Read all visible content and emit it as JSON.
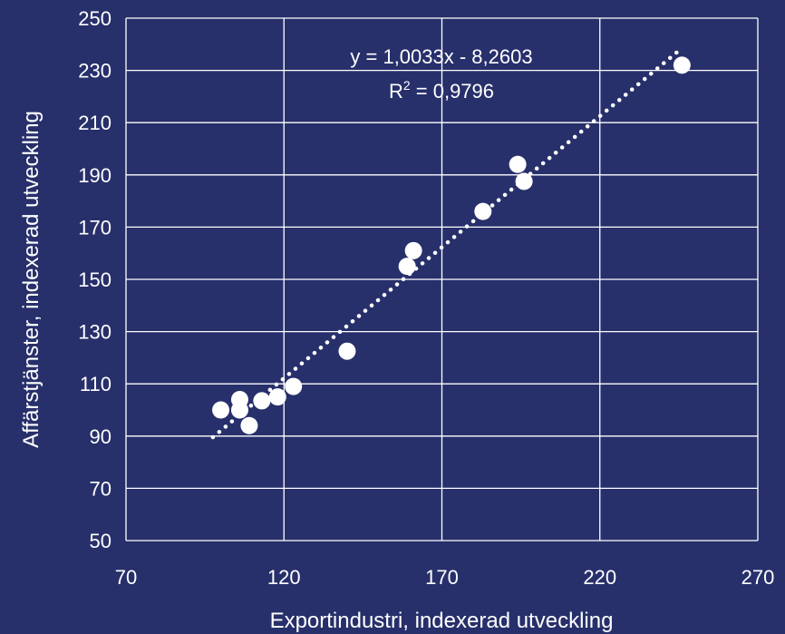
{
  "chart_data": {
    "type": "scatter",
    "xlabel": "Exportindustri, indexerad utveckling",
    "ylabel": "Affärstjänster, indexerad utveckling",
    "xlim": [
      70,
      270
    ],
    "ylim": [
      50,
      250
    ],
    "x_ticks": [
      70,
      120,
      170,
      220,
      270
    ],
    "y_ticks": [
      50,
      70,
      90,
      110,
      130,
      150,
      170,
      190,
      210,
      230,
      250
    ],
    "grid": true,
    "marker_color": "#ffffff",
    "background_color": "#27306b",
    "series": [
      {
        "points": [
          {
            "x": 100,
            "y": 100
          },
          {
            "x": 106,
            "y": 104
          },
          {
            "x": 106,
            "y": 100
          },
          {
            "x": 109,
            "y": 94
          },
          {
            "x": 113,
            "y": 103.5
          },
          {
            "x": 118,
            "y": 105
          },
          {
            "x": 123,
            "y": 109
          },
          {
            "x": 140,
            "y": 122.5
          },
          {
            "x": 159,
            "y": 155
          },
          {
            "x": 161,
            "y": 161
          },
          {
            "x": 183,
            "y": 176
          },
          {
            "x": 194,
            "y": 194
          },
          {
            "x": 196,
            "y": 187.5
          },
          {
            "x": 246,
            "y": 232
          }
        ]
      }
    ],
    "trendline": {
      "type": "linear",
      "slope": 1.0033,
      "intercept": -8.2603,
      "x_range": [
        97.5,
        245
      ],
      "style": "dotted",
      "equation_label": "y = 1,0033x - 8,2603",
      "r2_label_prefix": "R",
      "r2_label_sup": "2",
      "r2_label_suffix": " = 0,9796"
    }
  }
}
